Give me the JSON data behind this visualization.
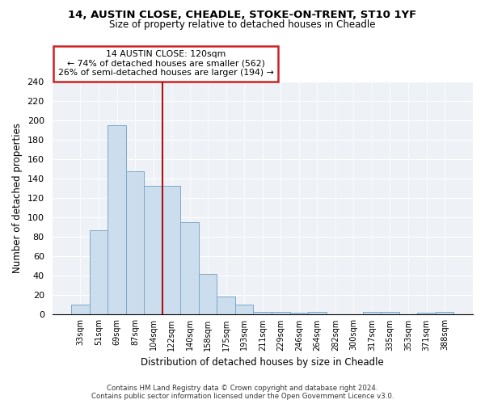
{
  "title_line1": "14, AUSTIN CLOSE, CHEADLE, STOKE-ON-TRENT, ST10 1YF",
  "title_line2": "Size of property relative to detached houses in Cheadle",
  "xlabel": "Distribution of detached houses by size in Cheadle",
  "ylabel": "Number of detached properties",
  "bar_color": "#ccdded",
  "bar_edge_color": "#7aaac8",
  "annotation_box_color": "#cc2222",
  "vline_color": "#aa1111",
  "categories": [
    "33sqm",
    "51sqm",
    "69sqm",
    "87sqm",
    "104sqm",
    "122sqm",
    "140sqm",
    "158sqm",
    "175sqm",
    "193sqm",
    "211sqm",
    "229sqm",
    "246sqm",
    "264sqm",
    "282sqm",
    "300sqm",
    "317sqm",
    "335sqm",
    "353sqm",
    "371sqm",
    "388sqm"
  ],
  "values": [
    10,
    87,
    195,
    148,
    133,
    133,
    95,
    42,
    19,
    10,
    3,
    3,
    2,
    3,
    0,
    0,
    3,
    3,
    0,
    2,
    3
  ],
  "vline_index": 5,
  "annotation_text_line1": "14 AUSTIN CLOSE: 120sqm",
  "annotation_text_line2": "← 74% of detached houses are smaller (562)",
  "annotation_text_line3": "26% of semi-detached houses are larger (194) →",
  "ylim": [
    0,
    240
  ],
  "yticks": [
    0,
    20,
    40,
    60,
    80,
    100,
    120,
    140,
    160,
    180,
    200,
    220,
    240
  ],
  "background_color": "#eef2f7",
  "footer_line1": "Contains HM Land Registry data © Crown copyright and database right 2024.",
  "footer_line2": "Contains public sector information licensed under the Open Government Licence v3.0."
}
